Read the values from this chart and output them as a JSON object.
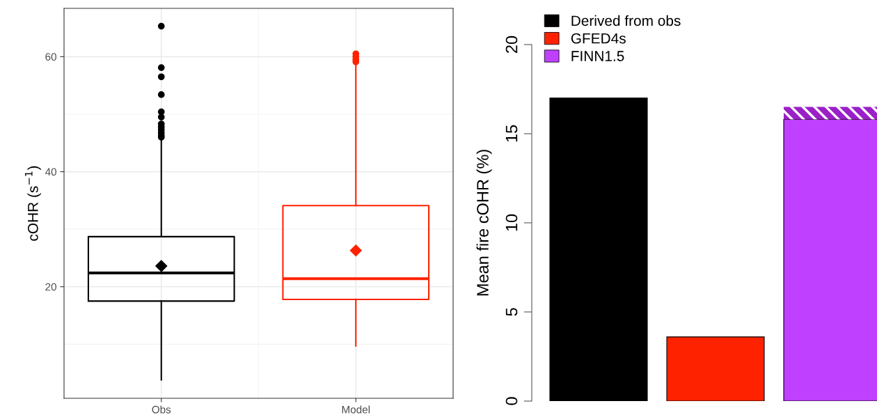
{
  "chart_data": [
    {
      "type": "box",
      "ylabel": "cOHR (s$^{−1}$)",
      "categories": [
        "Obs",
        "Model"
      ],
      "colors": [
        "#000000",
        "#ff2200"
      ],
      "boxes": [
        {
          "low": 3.8,
          "q1": 17.5,
          "median": 22.4,
          "q3": 28.7,
          "high": 45.8,
          "mean": 23.6,
          "outliers": [
            46.0,
            46.3,
            46.8,
            47.3,
            47.8,
            48.3,
            49.5,
            50.4,
            53.4,
            56.5,
            58.1,
            65.3
          ]
        },
        {
          "low": 9.7,
          "q1": 17.8,
          "median": 21.4,
          "q3": 34.1,
          "high": 58.8,
          "mean": 26.3,
          "outliers": [
            59.1,
            59.5,
            60.0,
            60.5
          ]
        }
      ],
      "ylim": [
        0.6,
        68.4
      ],
      "yticks": [
        20,
        40,
        60
      ],
      "grid": true
    },
    {
      "type": "bar",
      "ylabel": "Mean fire cOHR (%)",
      "categories": [
        null,
        null,
        null
      ],
      "stacked": true,
      "series": [
        {
          "name": "Derived from obs",
          "color": "#000000",
          "values": [
            17.0,
            null,
            null
          ]
        },
        {
          "name": "GFED4s",
          "color": "#ff2200",
          "values": [
            null,
            3.6,
            null
          ]
        },
        {
          "name": "FINN1.5",
          "color": "#c040ff",
          "values": [
            null,
            null,
            15.8
          ]
        },
        {
          "color": "#9b20c8",
          "values": [
            null,
            null,
            0.7
          ]
        }
      ],
      "ylim": [
        0,
        20
      ],
      "yticks": [
        0,
        5,
        10,
        15,
        20
      ],
      "grid": false,
      "legend": "top left",
      "tick_labels": "y"
    }
  ]
}
